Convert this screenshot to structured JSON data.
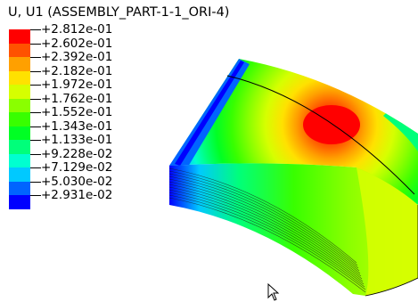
{
  "plot": {
    "title": "U, U1 (ASSEMBLY_PART-1-1_ORI-4)"
  },
  "legend": {
    "entries": [
      {
        "label": "+2.812e-01",
        "color": "#ff0000"
      },
      {
        "label": "+2.602e-01",
        "color": "#ff5200"
      },
      {
        "label": "+2.392e-01",
        "color": "#ffa000"
      },
      {
        "label": "+2.182e-01",
        "color": "#ffe100"
      },
      {
        "label": "+1.972e-01",
        "color": "#d6ff00"
      },
      {
        "label": "+1.762e-01",
        "color": "#8aff00"
      },
      {
        "label": "+1.552e-01",
        "color": "#38ff00"
      },
      {
        "label": "+1.343e-01",
        "color": "#00ff24"
      },
      {
        "label": "+1.133e-01",
        "color": "#00ff7a"
      },
      {
        "label": "+9.228e-02",
        "color": "#00ffd0"
      },
      {
        "label": "+7.129e-02",
        "color": "#00c9ff"
      },
      {
        "label": "+5.030e-02",
        "color": "#0064ff"
      },
      {
        "label": "+2.931e-02",
        "color": "#0000ff"
      }
    ]
  },
  "colors": {
    "max": "#ff0000",
    "min": "#0000ff",
    "mesh_edges": "#000000"
  },
  "icons": {
    "cursor": "mouse-pointer-icon"
  }
}
